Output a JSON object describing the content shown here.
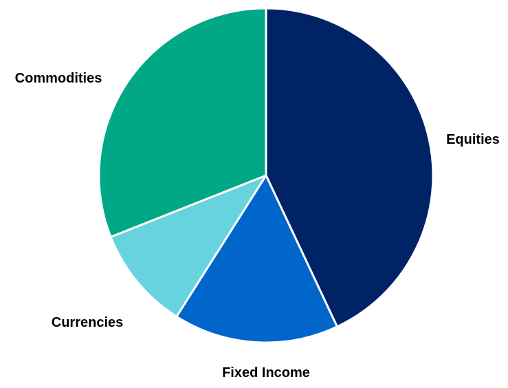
{
  "chart_data": {
    "type": "pie",
    "categories": [
      "Equities",
      "Fixed Income",
      "Currencies",
      "Commodities"
    ],
    "values": [
      43,
      16,
      10,
      31
    ],
    "colors": [
      "#002366",
      "#0066CC",
      "#66D3DE",
      "#00A886"
    ],
    "slice_border_color": "#ffffff",
    "start_angle": "12 o'clock",
    "direction": "clockwise",
    "legend": "none"
  }
}
